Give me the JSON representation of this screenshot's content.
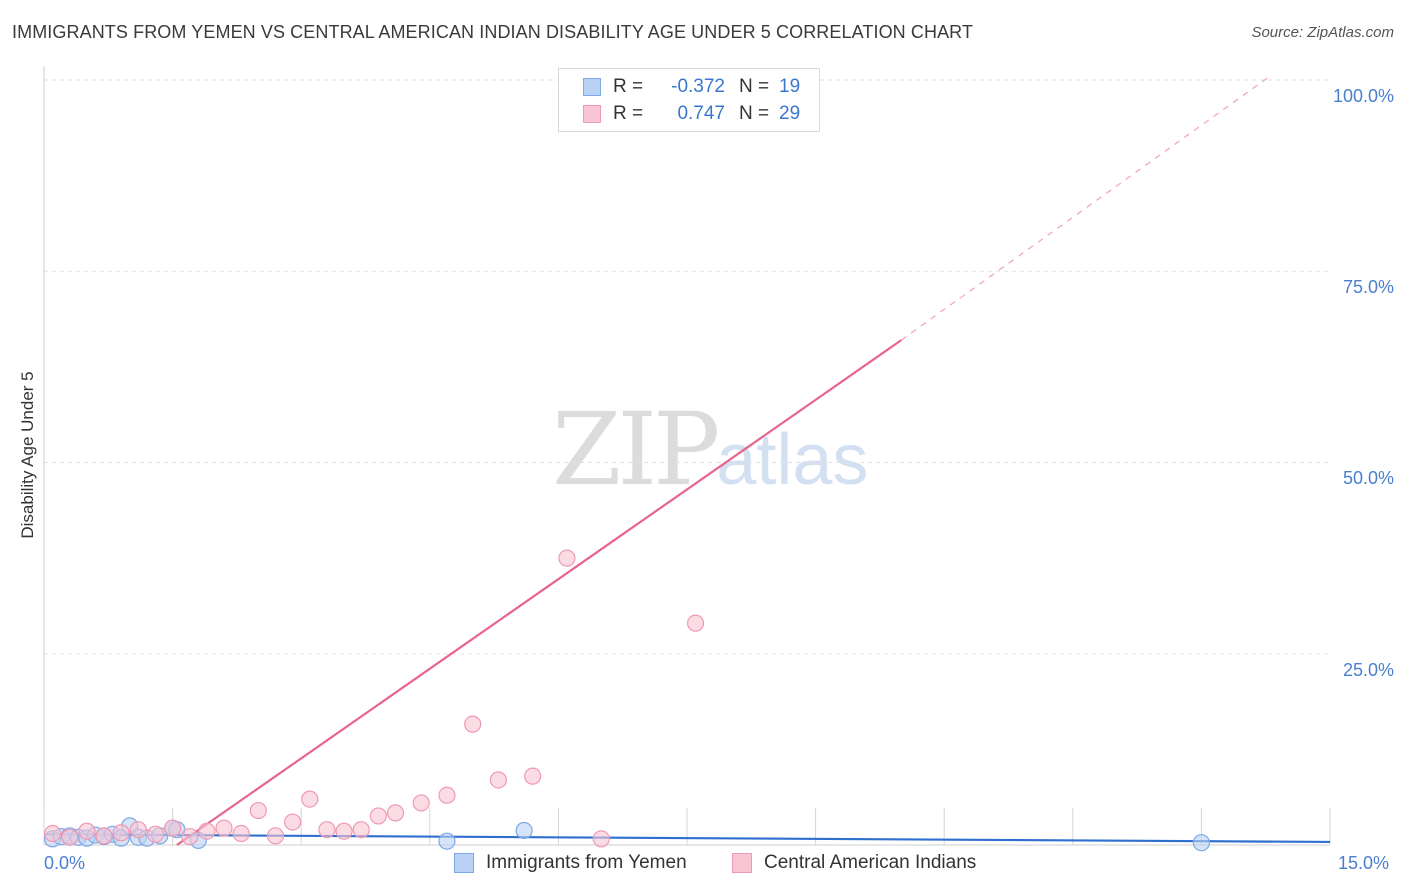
{
  "title": "IMMIGRANTS FROM YEMEN VS CENTRAL AMERICAN INDIAN DISABILITY AGE UNDER 5 CORRELATION CHART",
  "source": "Source: ZipAtlas.com",
  "watermark": {
    "zip": "ZIP",
    "atlas": "atlas"
  },
  "legend": {
    "r_label": "R =",
    "n_label": "N =",
    "rows": [
      {
        "name": "Immigrants from Yemen",
        "r": "-0.372",
        "n": "19",
        "fill": "#b9d2f4",
        "stroke": "#7ea8e6"
      },
      {
        "name": "Central American Indians",
        "r": "0.747",
        "n": "29",
        "fill": "#f8c5d4",
        "stroke": "#ee9ab4"
      }
    ]
  },
  "chart_data": {
    "type": "scatter",
    "title": "IMMIGRANTS FROM YEMEN VS CENTRAL AMERICAN INDIAN DISABILITY AGE UNDER 5 CORRELATION CHART",
    "xlabel": "",
    "ylabel": "Disability Age Under 5",
    "xlim": [
      0,
      15
    ],
    "ylim": [
      0,
      100
    ],
    "x_tick_labels": [
      "0.0%",
      "15.0%"
    ],
    "y_ticks": [
      25,
      50,
      75,
      100
    ],
    "y_tick_labels": [
      "25.0%",
      "50.0%",
      "75.0%",
      "100.0%"
    ],
    "series": [
      {
        "name": "Immigrants from Yemen",
        "color": "#7ea8e6",
        "fill": "#b9d2f4",
        "line_color": "#2f6fd0",
        "points": [
          {
            "x": 0.1,
            "y": 0.8
          },
          {
            "x": 0.2,
            "y": 1.1
          },
          {
            "x": 0.3,
            "y": 1.2
          },
          {
            "x": 0.4,
            "y": 1.0
          },
          {
            "x": 0.5,
            "y": 0.9
          },
          {
            "x": 0.6,
            "y": 1.3
          },
          {
            "x": 0.7,
            "y": 1.1
          },
          {
            "x": 0.8,
            "y": 1.4
          },
          {
            "x": 0.9,
            "y": 0.9
          },
          {
            "x": 1.0,
            "y": 2.5
          },
          {
            "x": 1.1,
            "y": 1.0
          },
          {
            "x": 1.2,
            "y": 0.9
          },
          {
            "x": 1.35,
            "y": 1.2
          },
          {
            "x": 1.5,
            "y": 2.2
          },
          {
            "x": 1.55,
            "y": 2.0
          },
          {
            "x": 1.8,
            "y": 0.6
          },
          {
            "x": 4.7,
            "y": 0.5
          },
          {
            "x": 5.6,
            "y": 1.9
          },
          {
            "x": 13.5,
            "y": 0.3
          }
        ],
        "trend": {
          "x0": 0,
          "y0": 1.4,
          "x1": 15,
          "y1": 0.4
        }
      },
      {
        "name": "Central American Indians",
        "color": "#ee9ab4",
        "fill": "#f8c5d4",
        "line_color": "#e8648f",
        "points": [
          {
            "x": 0.1,
            "y": 1.5
          },
          {
            "x": 0.3,
            "y": 1.0
          },
          {
            "x": 0.5,
            "y": 1.8
          },
          {
            "x": 0.7,
            "y": 1.2
          },
          {
            "x": 0.9,
            "y": 1.6
          },
          {
            "x": 1.1,
            "y": 2.0
          },
          {
            "x": 1.3,
            "y": 1.4
          },
          {
            "x": 1.5,
            "y": 2.2
          },
          {
            "x": 1.7,
            "y": 1.1
          },
          {
            "x": 1.9,
            "y": 1.8
          },
          {
            "x": 2.1,
            "y": 2.2
          },
          {
            "x": 2.3,
            "y": 1.5
          },
          {
            "x": 2.5,
            "y": 4.5
          },
          {
            "x": 2.7,
            "y": 1.2
          },
          {
            "x": 2.9,
            "y": 3.0
          },
          {
            "x": 3.1,
            "y": 6.0
          },
          {
            "x": 3.3,
            "y": 2.0
          },
          {
            "x": 3.5,
            "y": 1.8
          },
          {
            "x": 3.7,
            "y": 2.0
          },
          {
            "x": 3.9,
            "y": 3.8
          },
          {
            "x": 4.1,
            "y": 4.2
          },
          {
            "x": 4.4,
            "y": 5.5
          },
          {
            "x": 4.7,
            "y": 6.5
          },
          {
            "x": 5.0,
            "y": 15.8
          },
          {
            "x": 5.3,
            "y": 8.5
          },
          {
            "x": 5.7,
            "y": 9.0
          },
          {
            "x": 6.1,
            "y": 37.5
          },
          {
            "x": 6.5,
            "y": 0.8
          },
          {
            "x": 7.6,
            "y": 29.0
          }
        ],
        "trend": {
          "x0": 1.55,
          "y0": 0,
          "x1": 10.0,
          "y1": 66.0
        },
        "trend_extension": {
          "x0": 10.0,
          "y0": 66.0,
          "x1": 14.3,
          "y1": 100.5
        }
      }
    ]
  }
}
